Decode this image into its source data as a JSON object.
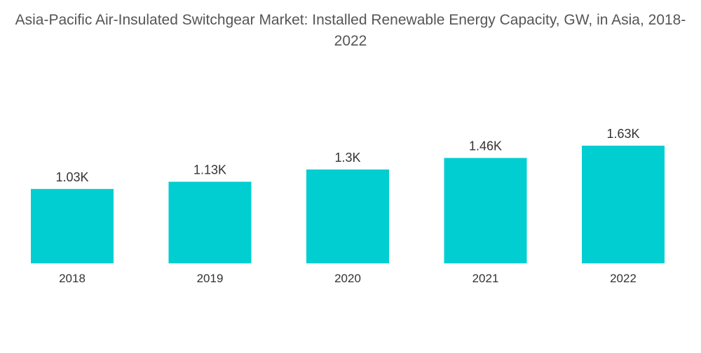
{
  "chart_data": {
    "type": "bar",
    "title": "Asia-Pacific Air-Insulated Switchgear Market: Installed Renewable Energy Capacity, GW, in Asia, 2018-2022",
    "categories": [
      "2018",
      "2019",
      "2020",
      "2021",
      "2022"
    ],
    "values": [
      1030,
      1130,
      1300,
      1460,
      1630
    ],
    "data_labels": [
      "1.03K",
      "1.13K",
      "1.3K",
      "1.46K",
      "1.63K"
    ],
    "xlabel": "",
    "ylabel": "",
    "ylim": [
      0,
      1630
    ],
    "grid": false,
    "legend": "none",
    "colors": {
      "bar": "#00ced1"
    }
  }
}
